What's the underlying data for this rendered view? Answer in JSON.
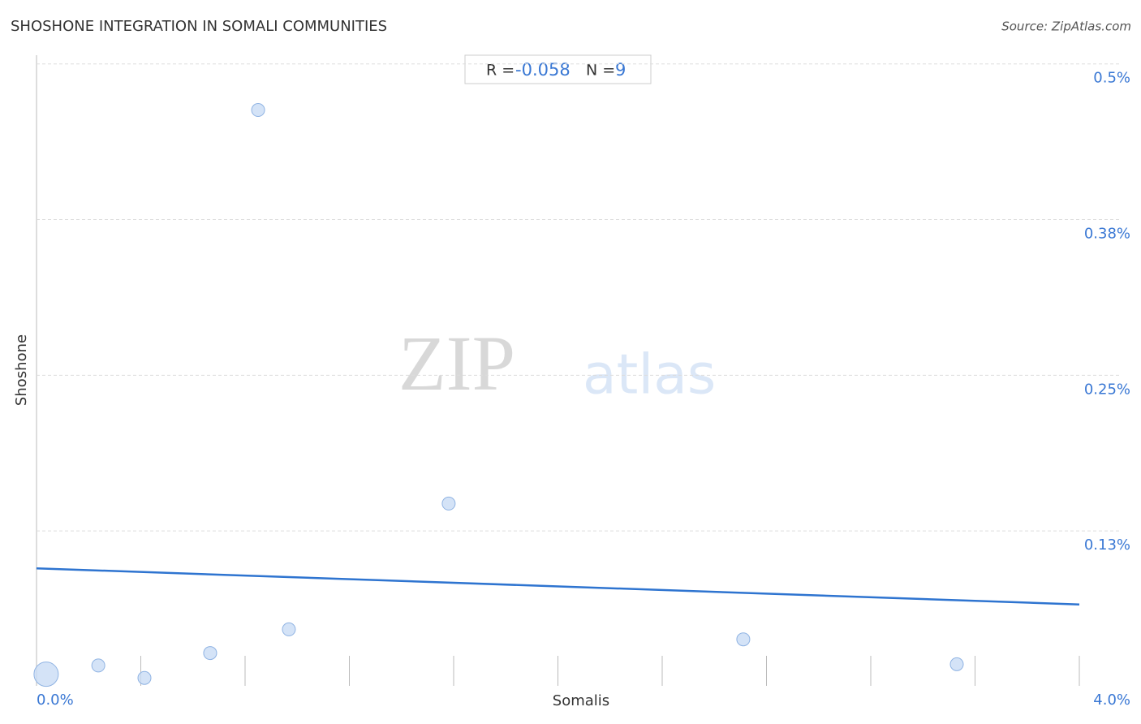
{
  "chart_data": {
    "type": "scatter",
    "title": "SHOSHONE INTEGRATION IN SOMALI COMMUNITIES",
    "source": "Source: ZipAtlas.com",
    "x_label": "Somalis",
    "y_label": "Shoshone",
    "watermark": [
      "ZIP",
      "atlas"
    ],
    "stats": {
      "r_label": "R =",
      "r": -0.058,
      "n_label": "N =",
      "n": 9
    },
    "x": [
      0.037,
      0.237,
      0.414,
      0.666,
      0.85,
      0.968,
      1.581,
      2.711,
      3.53
    ],
    "values": [
      0.01,
      0.017,
      0.007,
      0.027,
      0.463,
      0.046,
      0.147,
      0.038,
      0.018
    ],
    "sizes": [
      15,
      8,
      8,
      8,
      8,
      8,
      8,
      8,
      8
    ],
    "color": "#c9dcf5",
    "trendline": {
      "x": [
        0,
        4
      ],
      "values": [
        0.095,
        0.066
      ],
      "color": "#2e74d0"
    },
    "xlim": [
      0,
      4
    ],
    "ylim": [
      0,
      0.507
    ],
    "xticks": [
      {
        "value": 0,
        "label": "0.0%"
      },
      0.4,
      0.8,
      1.2,
      1.6,
      2,
      2.4,
      2.8,
      3.2,
      3.6,
      {
        "value": 4,
        "label": "4.0%"
      }
    ],
    "yticks": [
      {
        "value": 0.125,
        "label": "0.13%"
      },
      {
        "value": 0.25,
        "label": "0.25%"
      },
      {
        "value": 0.375,
        "label": "0.38%"
      },
      {
        "value": 0.5,
        "label": "0.5%"
      }
    ],
    "grid": true
  }
}
